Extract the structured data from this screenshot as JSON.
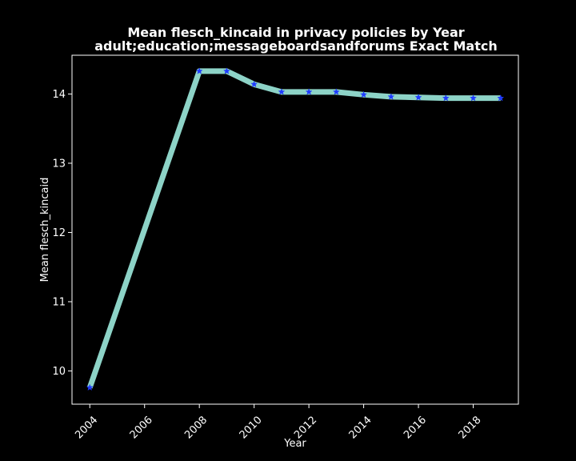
{
  "colors": {
    "background": "#000000",
    "axes": "#ffffff",
    "line": "#8dd3c7",
    "marker": "#1f3bff",
    "text": "#ffffff"
  },
  "chart_data": {
    "type": "line",
    "title": "Mean flesch_kincaid in privacy policies by Year",
    "subtitle": "adult;education;messageboardsandforums Exact Match",
    "xlabel": "Year",
    "ylabel": "Mean flesch_kincaid",
    "xlim": [
      2003.35,
      2019.65
    ],
    "ylim": [
      9.52,
      14.56
    ],
    "xticks": [
      2004,
      2006,
      2008,
      2010,
      2012,
      2014,
      2016,
      2018
    ],
    "yticks": [
      10,
      11,
      12,
      13,
      14
    ],
    "grid": false,
    "legend": "none",
    "marker": "star",
    "series": [
      {
        "x": [
          2004,
          2008,
          2009,
          2010,
          2011,
          2012,
          2013,
          2014,
          2015,
          2016,
          2017,
          2018,
          2019
        ],
        "y": [
          9.76,
          14.33,
          14.33,
          14.14,
          14.03,
          14.03,
          14.03,
          13.99,
          13.96,
          13.95,
          13.94,
          13.94,
          13.94
        ]
      }
    ]
  }
}
